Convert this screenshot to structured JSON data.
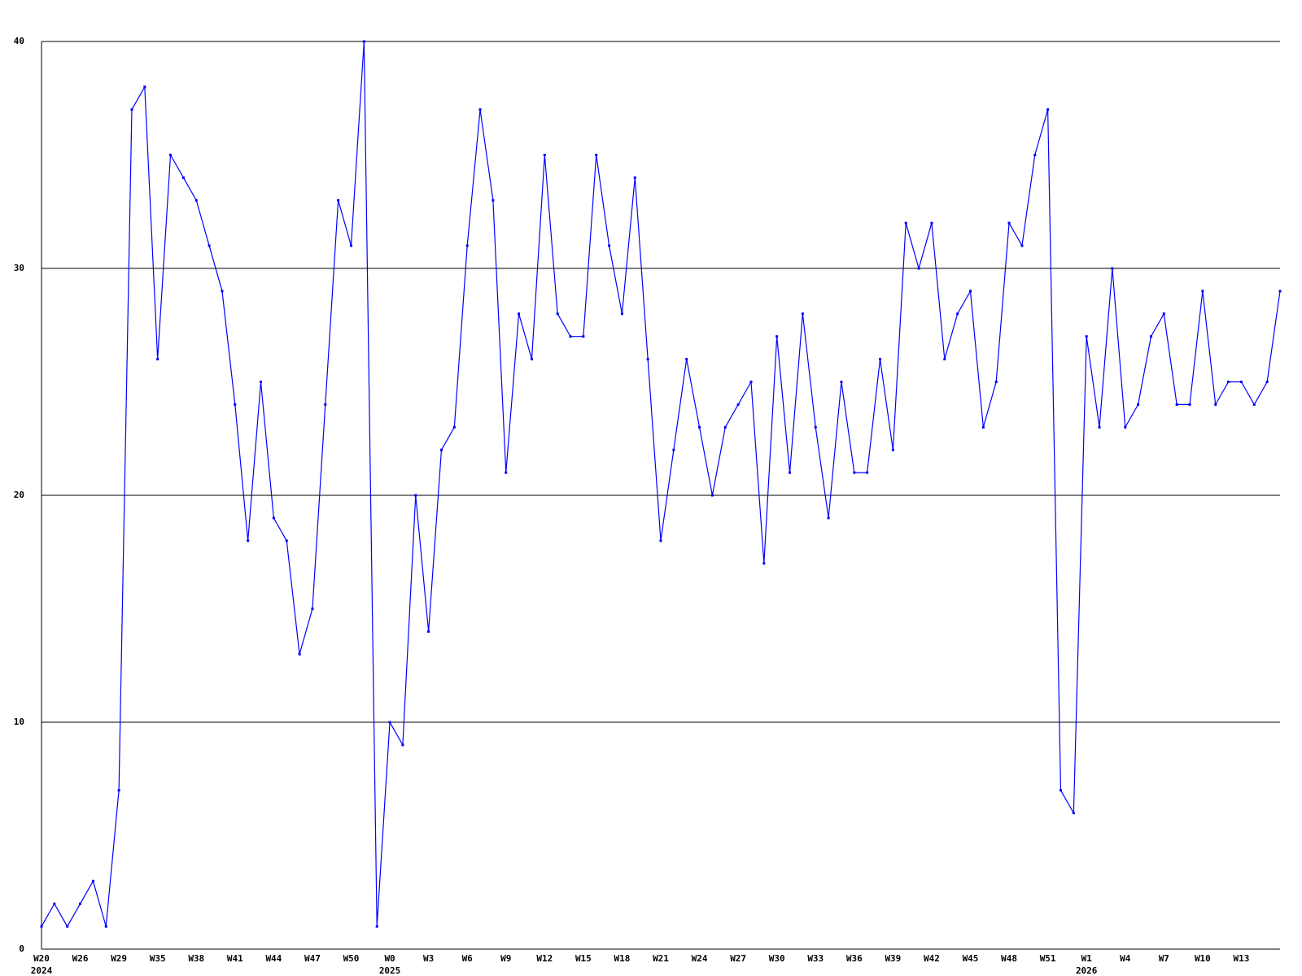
{
  "chart_data": {
    "type": "line",
    "color": "#0000ff",
    "grid": true,
    "ylim": [
      0,
      40
    ],
    "yticks": [
      0,
      10,
      20,
      30,
      40
    ],
    "categories": [
      "W20",
      null,
      null,
      "W26",
      null,
      null,
      "W29",
      null,
      null,
      "W35",
      null,
      null,
      "W38",
      null,
      null,
      "W41",
      null,
      null,
      "W44",
      null,
      null,
      "W47",
      null,
      null,
      "W50",
      null,
      null,
      "W0",
      null,
      null,
      "W3",
      null,
      null,
      "W6",
      null,
      null,
      "W9",
      null,
      null,
      "W12",
      null,
      null,
      "W15",
      null,
      null,
      "W18",
      null,
      null,
      "W21",
      null,
      null,
      "W24",
      null,
      null,
      "W27",
      null,
      null,
      "W30",
      null,
      null,
      "W33",
      null,
      null,
      "W36",
      null,
      null,
      "W39",
      null,
      null,
      "W42",
      null,
      null,
      "W45",
      null,
      null,
      "W48",
      null,
      null,
      "W51",
      null,
      null,
      "W1",
      null,
      null,
      "W4",
      null,
      null,
      "W7",
      null,
      null,
      "W10",
      null,
      null,
      "W13",
      null,
      null,
      null
    ],
    "years": [
      "2024",
      null,
      null,
      null,
      null,
      null,
      null,
      null,
      null,
      null,
      null,
      null,
      null,
      null,
      null,
      null,
      null,
      null,
      null,
      null,
      null,
      null,
      null,
      null,
      null,
      null,
      null,
      "2025",
      null,
      null,
      null,
      null,
      null,
      null,
      null,
      null,
      null,
      null,
      null,
      null,
      null,
      null,
      null,
      null,
      null,
      null,
      null,
      null,
      null,
      null,
      null,
      null,
      null,
      null,
      null,
      null,
      null,
      null,
      null,
      null,
      null,
      null,
      null,
      null,
      null,
      null,
      null,
      null,
      null,
      null,
      null,
      null,
      null,
      null,
      null,
      null,
      null,
      null,
      null,
      null,
      null,
      "2026",
      null,
      null,
      null,
      null,
      null,
      null,
      null,
      null,
      null,
      null,
      null,
      null,
      null,
      null,
      null
    ],
    "values": [
      1,
      2,
      1,
      2,
      3,
      1,
      7,
      37,
      38,
      26,
      35,
      34,
      33,
      31,
      29,
      24,
      18,
      25,
      19,
      18,
      13,
      15,
      24,
      33,
      31,
      40,
      1,
      10,
      9,
      20,
      14,
      22,
      23,
      31,
      37,
      33,
      21,
      28,
      26,
      35,
      28,
      27,
      27,
      35,
      31,
      28,
      34,
      26,
      18,
      22,
      26,
      23,
      20,
      23,
      24,
      25,
      17,
      27,
      21,
      28,
      23,
      19,
      25,
      21,
      21,
      26,
      22,
      32,
      30,
      32,
      26,
      28,
      29,
      23,
      25,
      32,
      31,
      35,
      37,
      7,
      6,
      27,
      23,
      30,
      23,
      24,
      27,
      28,
      24,
      24,
      29,
      24,
      25,
      25,
      24,
      25,
      29
    ]
  }
}
